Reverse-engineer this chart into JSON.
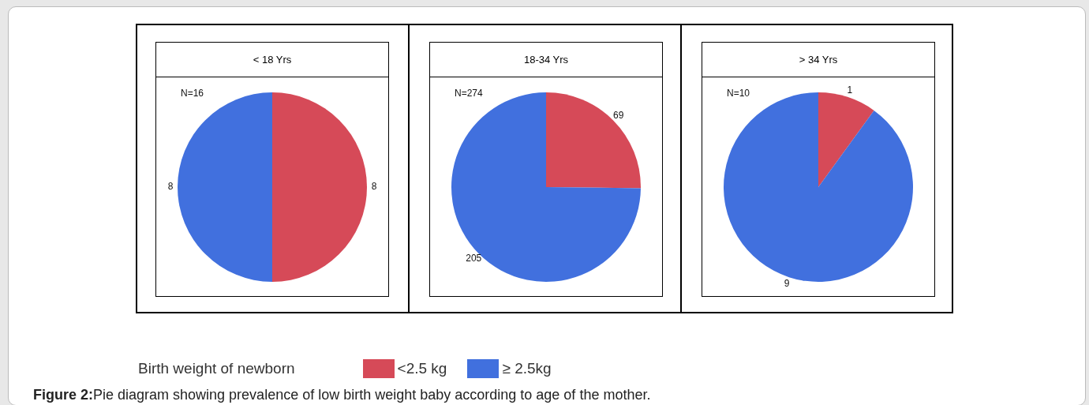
{
  "chart_data": [
    {
      "type": "pie",
      "title": "< 18 Yrs",
      "categories": [
        "<2.5 kg",
        "≥ 2.5kg"
      ],
      "values": [
        8,
        8
      ],
      "colors": [
        "#d64a58",
        "#4170de"
      ],
      "data_labels": true,
      "annotations": [
        "N=16",
        "Figure 2:",
        "Pie diagram showing prevalence of low birth weight baby according to age of the mother."
      ],
      "legend": "bottom",
      "legend_title": "Birth weight of newborn"
    },
    {
      "type": "pie",
      "title": "18-34 Yrs",
      "categories": [
        null,
        null
      ],
      "values": [
        69,
        205
      ],
      "colors": [
        "#d64a58",
        "#4170de"
      ],
      "data_labels": true,
      "annotations": [
        "N=274"
      ]
    },
    {
      "type": "pie",
      "title": "> 34 Yrs",
      "categories": [
        null,
        null
      ],
      "values": [
        1,
        9
      ],
      "colors": [
        "#d64a58",
        "#4170de"
      ],
      "data_labels": true,
      "annotations": [
        "N=10"
      ]
    }
  ]
}
